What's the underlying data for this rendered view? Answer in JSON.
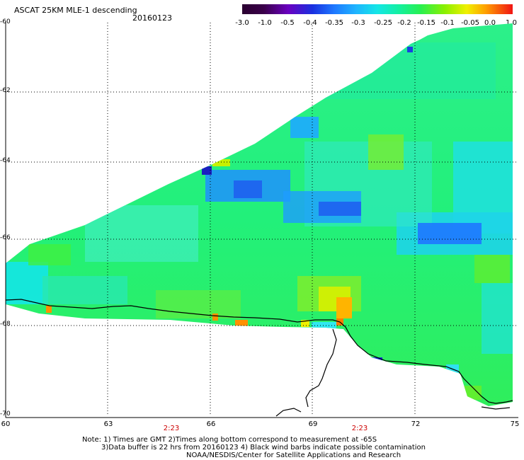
{
  "header": {
    "title": "ASCAT 25KM MLE-1 descending",
    "date": "20160123"
  },
  "colorbar": {
    "labels": [
      "-3.0",
      "-1.0",
      "-0.5",
      "-0.4",
      "-0.35",
      "-0.3",
      "-0.25",
      "-0.2",
      "-0.15",
      "-0.1",
      "-0.05",
      "0.0",
      "1.0"
    ],
    "colors": [
      "#3a003a",
      "#5a00a0",
      "#1a30e0",
      "#1e78ff",
      "#1eb4ff",
      "#14e6e6",
      "#14f0a0",
      "#28f050",
      "#8cf000",
      "#f0f000",
      "#ffb400",
      "#ff5a00",
      "#f01414"
    ]
  },
  "map": {
    "lat_labels": [
      "-60",
      "-62",
      "-64",
      "-66",
      "-68",
      "-70"
    ],
    "lon_labels": [
      "60",
      "63",
      "66",
      "69",
      "72",
      "75"
    ],
    "pass_times": [
      "2:23",
      "2:23"
    ]
  },
  "footer": {
    "line1": "Note: 1) Times are GMT 2)Times along bottom correspond to measurement at -65S",
    "line2": "3)Data buffer is 22 hrs from 20160123 4) Black wind barbs indicate possible contamination",
    "line3": "NOAA/NESDIS/Center for Satellite Applications and Research"
  }
}
